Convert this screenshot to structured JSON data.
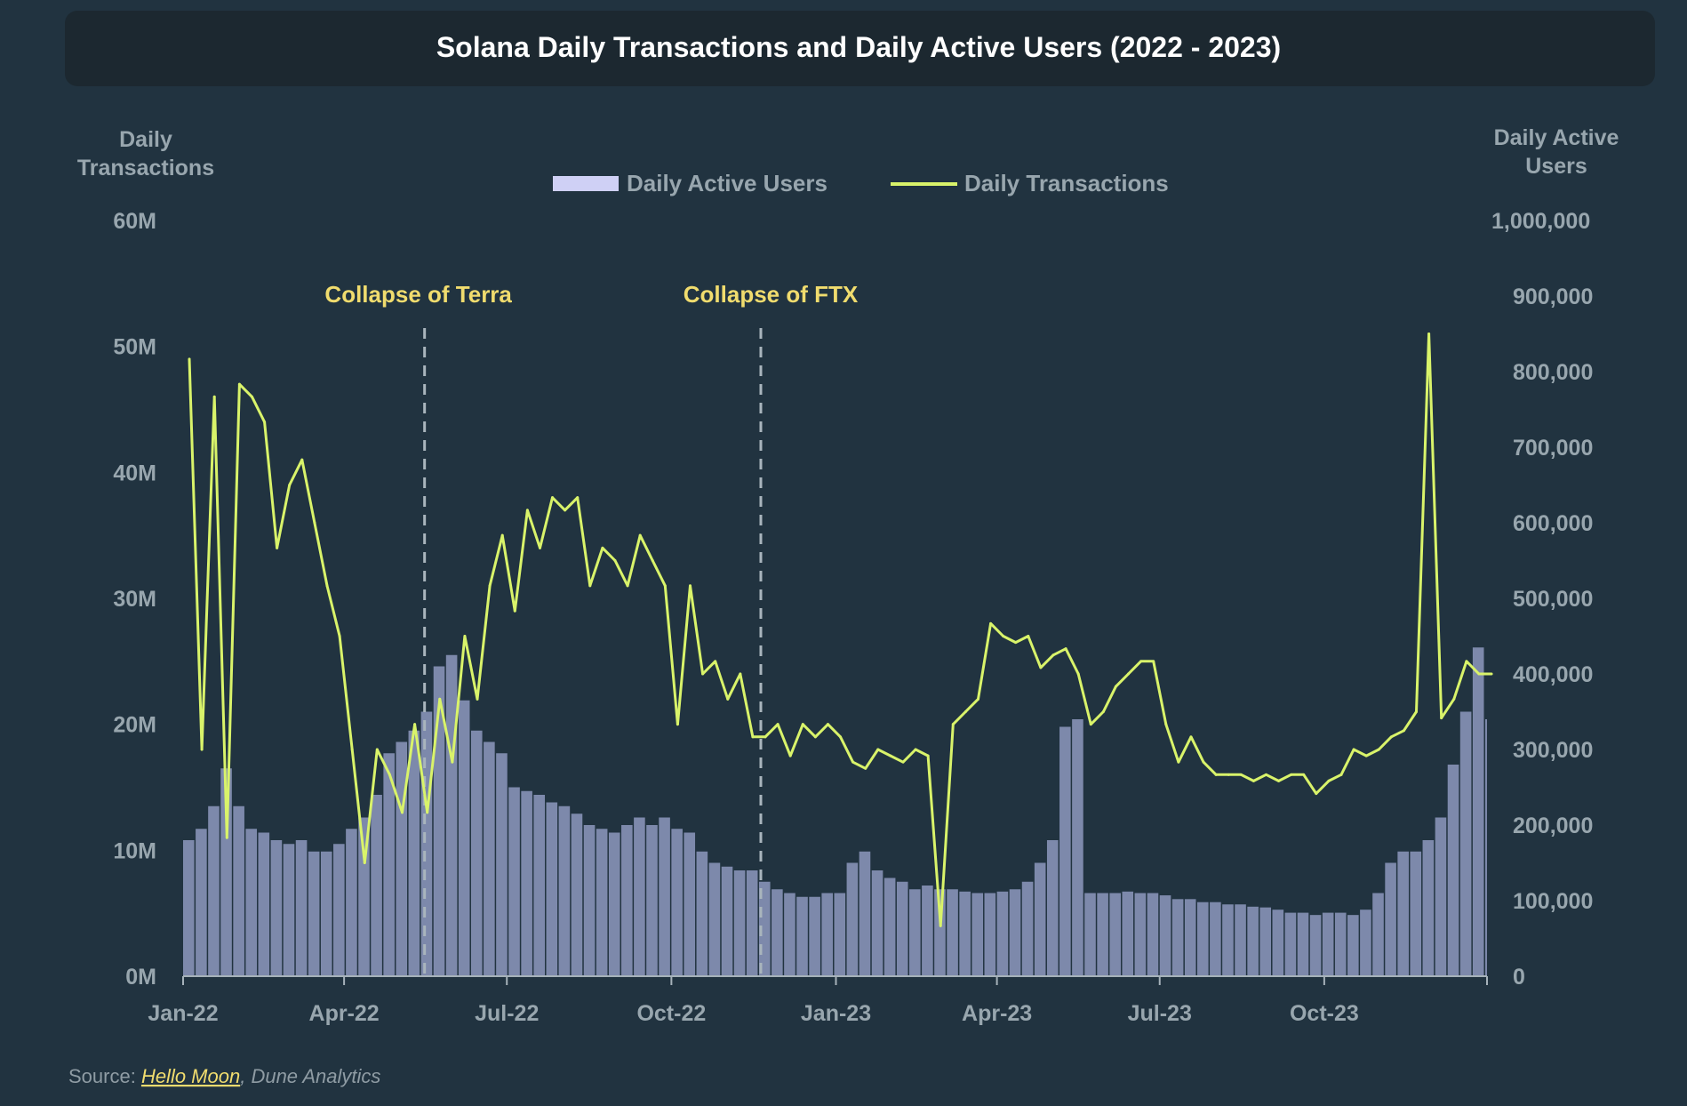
{
  "chart_data": {
    "type": "bar+line",
    "title": "Solana Daily Transactions and Daily Active Users (2022 - 2023)",
    "y_left_label": [
      "Daily",
      "Transactions"
    ],
    "y_right_label": [
      "Daily Active",
      "Users"
    ],
    "y_left_ticks": [
      "0M",
      "10M",
      "20M",
      "30M",
      "40M",
      "50M",
      "60M"
    ],
    "y_right_ticks": [
      "0",
      "100,000",
      "200,000",
      "300,000",
      "400,000",
      "500,000",
      "600,000",
      "700,000",
      "800,000",
      "900,000",
      "1,000,000"
    ],
    "y_left_range": [
      0,
      60000000
    ],
    "y_right_range": [
      0,
      1000000
    ],
    "x_range": [
      "2022-01-01",
      "2023-12-31"
    ],
    "x_ticks": [
      {
        "date": "2022-01-01",
        "label": "Jan-22"
      },
      {
        "date": "2022-04-01",
        "label": "Apr-22"
      },
      {
        "date": "2022-07-01",
        "label": "Jul-22"
      },
      {
        "date": "2022-10-01",
        "label": "Oct-22"
      },
      {
        "date": "2023-01-01",
        "label": "Jan-23"
      },
      {
        "date": "2023-04-01",
        "label": "Apr-23"
      },
      {
        "date": "2023-07-01",
        "label": "Jul-23"
      },
      {
        "date": "2023-10-01",
        "label": "Oct-23"
      },
      {
        "date": "2023-12-31",
        "label": ""
      }
    ],
    "grid": false,
    "legend_position": "top-center",
    "legend": [
      {
        "name": "Daily Active Users",
        "type": "bar",
        "color": "#cfd0f5"
      },
      {
        "name": "Daily Transactions",
        "type": "line",
        "color": "#d9f36a"
      }
    ],
    "annotations": [
      {
        "label": "Collapse of Terra",
        "date": "2022-05-16"
      },
      {
        "label": "Collapse of FTX",
        "date": "2022-11-20"
      }
    ],
    "x_start": "2022-01-01",
    "x_step_days": 7,
    "series": [
      {
        "name": "Daily Active Users",
        "axis": "right",
        "color": "#8690b4",
        "values": [
          180000,
          195000,
          225000,
          275000,
          225000,
          195000,
          190000,
          180000,
          175000,
          180000,
          165000,
          165000,
          175000,
          195000,
          210000,
          240000,
          295000,
          310000,
          325000,
          350000,
          410000,
          425000,
          365000,
          325000,
          310000,
          295000,
          250000,
          245000,
          240000,
          230000,
          225000,
          215000,
          200000,
          195000,
          190000,
          200000,
          210000,
          200000,
          210000,
          195000,
          190000,
          165000,
          150000,
          145000,
          140000,
          140000,
          125000,
          115000,
          110000,
          105000,
          105000,
          110000,
          110000,
          150000,
          165000,
          140000,
          130000,
          125000,
          115000,
          120000,
          115000,
          115000,
          112000,
          110000,
          110000,
          112000,
          115000,
          125000,
          150000,
          180000,
          330000,
          340000,
          110000,
          110000,
          110000,
          112000,
          110000,
          110000,
          107000,
          102000,
          102000,
          98000,
          98000,
          95000,
          95000,
          92000,
          91000,
          88000,
          84000,
          84000,
          81000,
          84000,
          84000,
          81000,
          88000,
          110000,
          150000,
          165000,
          165000,
          180000,
          210000,
          280000,
          350000,
          435000,
          340000
        ]
      },
      {
        "name": "Daily Transactions",
        "axis": "left",
        "color": "#d9f36a",
        "values": [
          49000000,
          18000000,
          46000000,
          11000000,
          47000000,
          46000000,
          44000000,
          34000000,
          39000000,
          41000000,
          36000000,
          31000000,
          27000000,
          18000000,
          9000000,
          18000000,
          16000000,
          13000000,
          20000000,
          13000000,
          22000000,
          17000000,
          27000000,
          22000000,
          31000000,
          35000000,
          29000000,
          37000000,
          34000000,
          38000000,
          37000000,
          38000000,
          31000000,
          34000000,
          33000000,
          31000000,
          35000000,
          33000000,
          31000000,
          20000000,
          31000000,
          24000000,
          25000000,
          22000000,
          24000000,
          19000000,
          19000000,
          20000000,
          17500000,
          20000000,
          19000000,
          20000000,
          19000000,
          17000000,
          16500000,
          18000000,
          17500000,
          17000000,
          18000000,
          17500000,
          4000000,
          20000000,
          21000000,
          22000000,
          28000000,
          27000000,
          26500000,
          27000000,
          24500000,
          25500000,
          26000000,
          24000000,
          20000000,
          21000000,
          23000000,
          24000000,
          25000000,
          25000000,
          20000000,
          17000000,
          19000000,
          17000000,
          16000000,
          16000000,
          16000000,
          15500000,
          16000000,
          15500000,
          16000000,
          16000000,
          14500000,
          15500000,
          16000000,
          18000000,
          17500000,
          18000000,
          19000000,
          19500000,
          21000000,
          51000000,
          20500000,
          22000000,
          25000000,
          24000000,
          24000000
        ]
      }
    ]
  },
  "source": {
    "prefix": "Source: ",
    "link": "Hello Moon",
    "rest": ", Dune Analytics"
  }
}
